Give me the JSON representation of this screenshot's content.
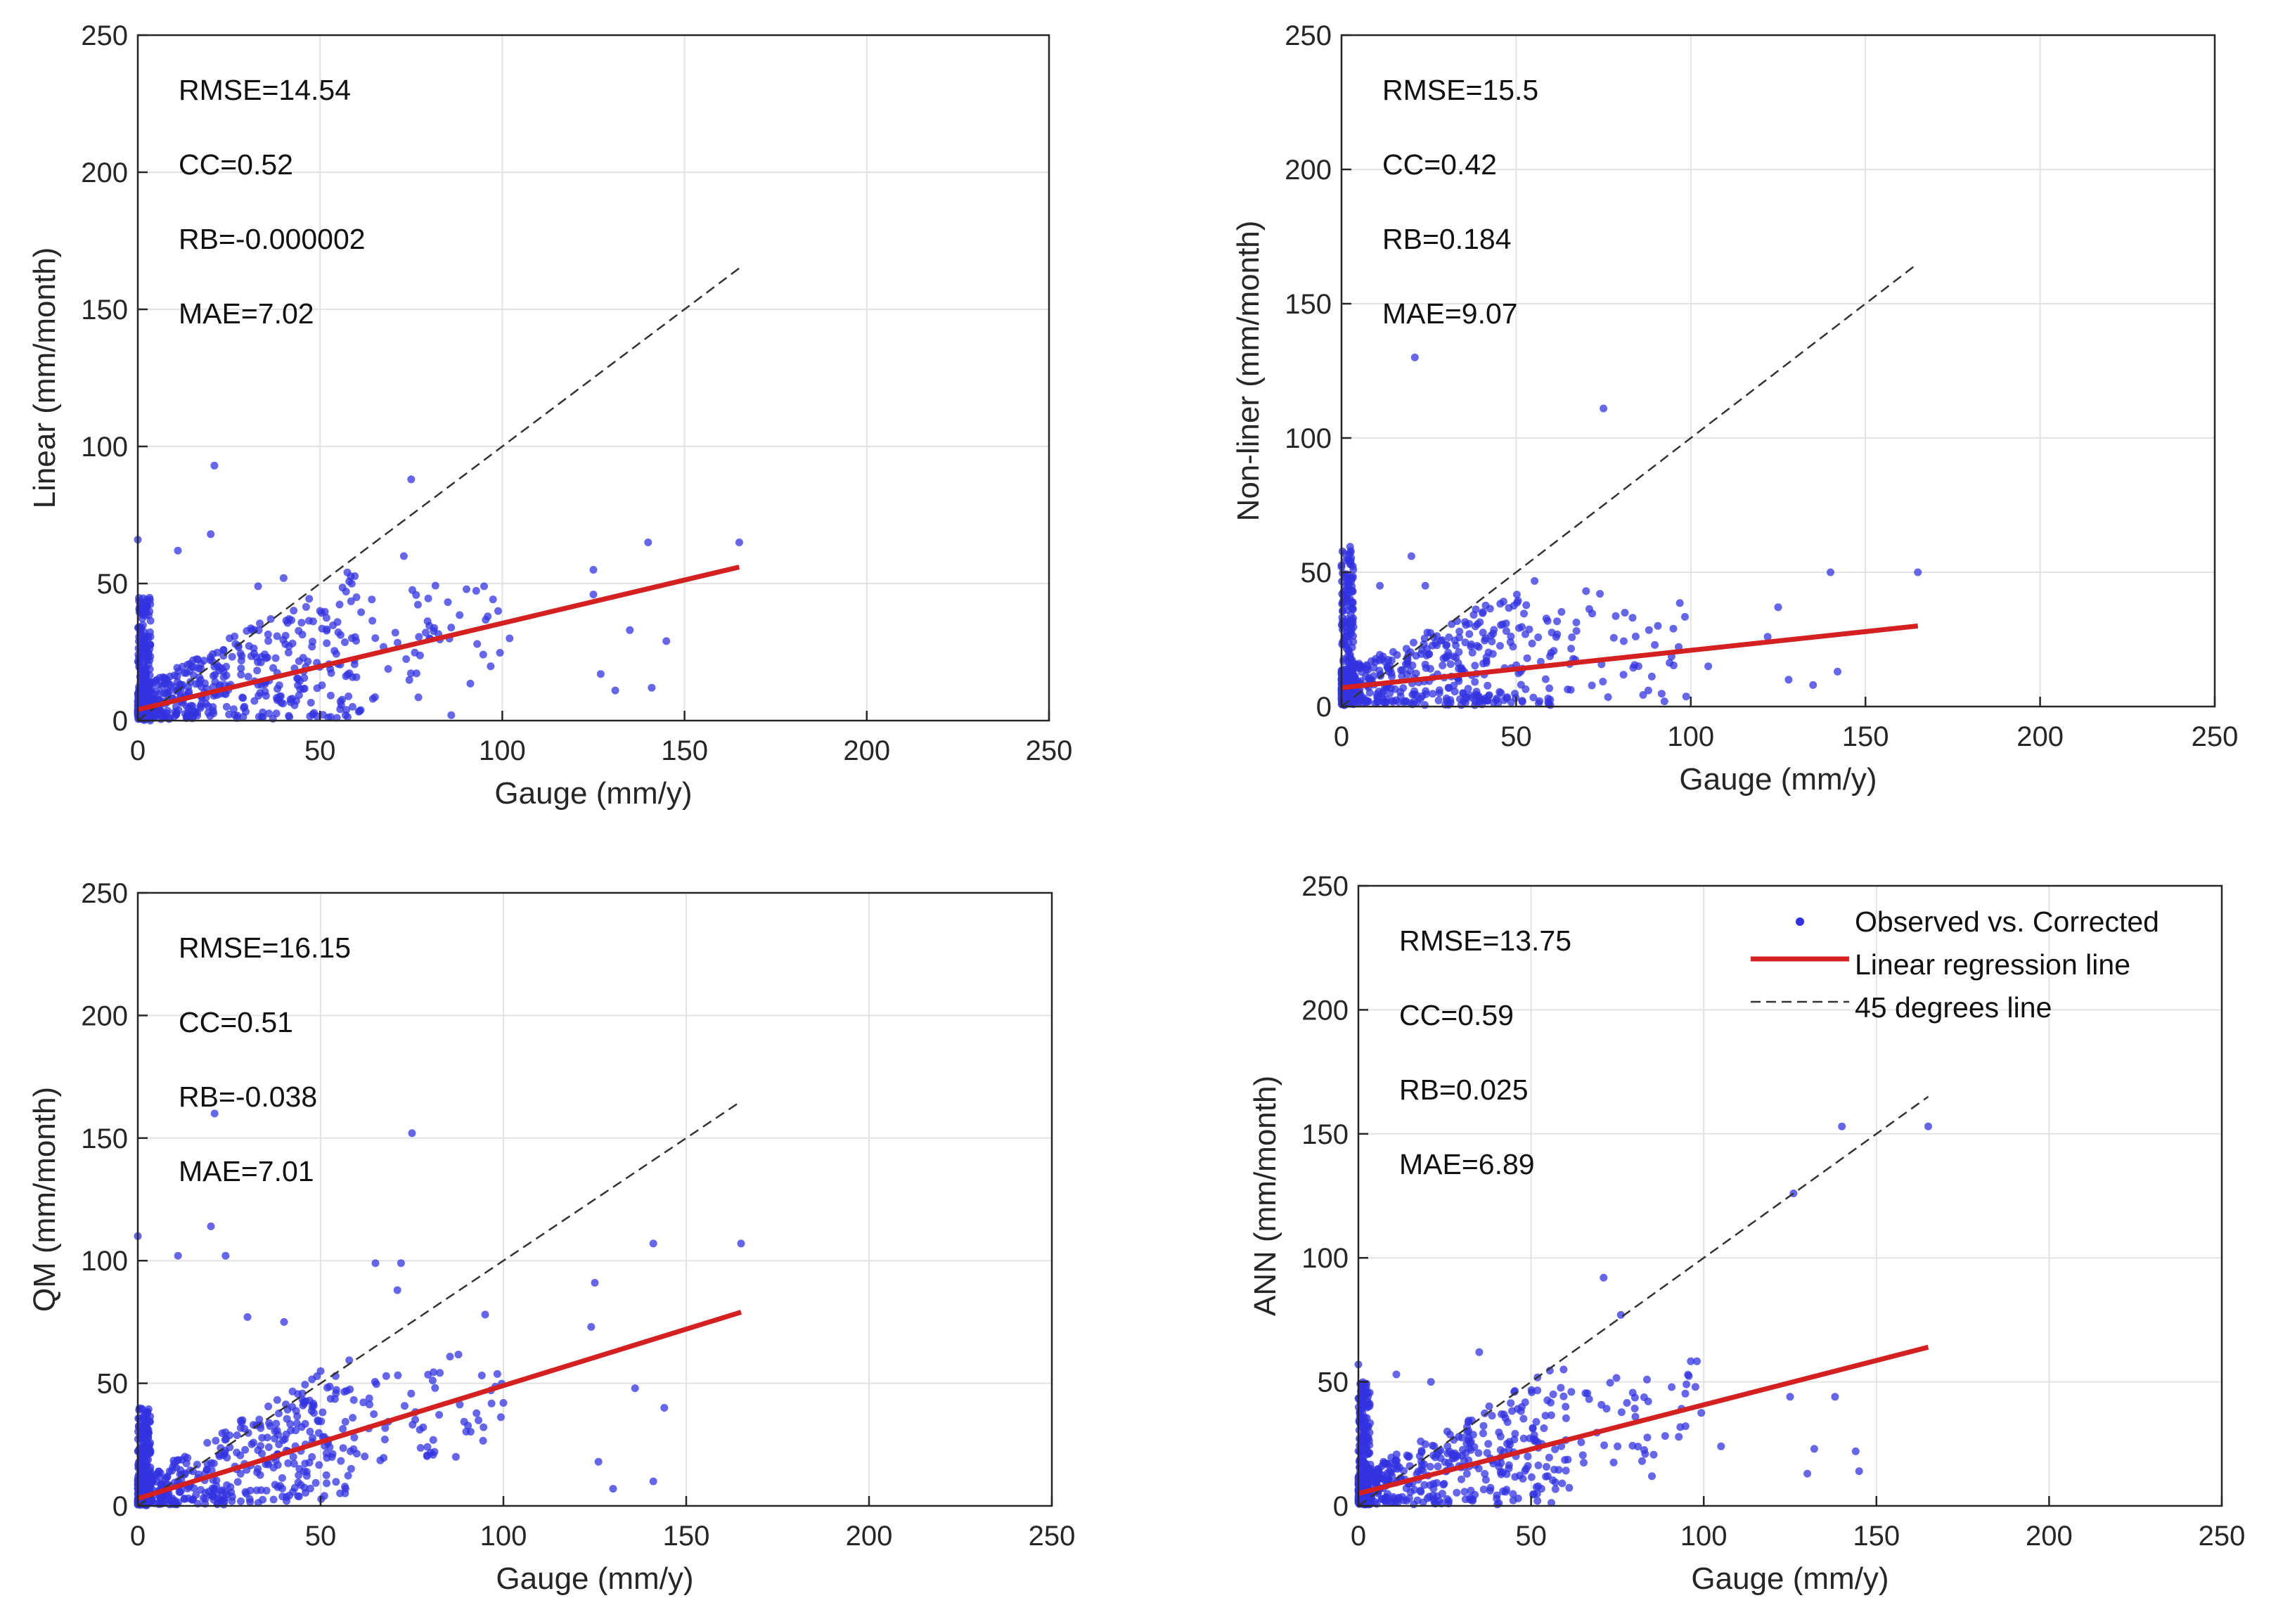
{
  "colors": {
    "scatter": "#3333e0",
    "regression": "#d42020",
    "diagonal": "#333333",
    "grid": "#e3e3e3",
    "axis": "#262626"
  },
  "legend": {
    "placement": "top-right",
    "entries": [
      "Observed vs. Corrected",
      "Linear regression line",
      "45 degrees line"
    ]
  },
  "chart_data": [
    {
      "type": "scatter",
      "xlabel": "Gauge (mm/y)",
      "ylabel": "Linear (mm/month)",
      "xlim": [
        0,
        250
      ],
      "ylim": [
        0,
        250
      ],
      "xticks": [
        0,
        50,
        100,
        150,
        200,
        250
      ],
      "yticks": [
        0,
        50,
        100,
        150,
        200,
        250
      ],
      "grid": true,
      "stats": [
        "RMSE=14.54",
        "CC=0.52",
        "RB=-0.000002",
        "MAE=7.02"
      ],
      "regression_line": {
        "x": [
          0,
          165
        ],
        "y": [
          4,
          56
        ]
      },
      "diagonal_line": {
        "x": [
          0,
          165
        ],
        "y": [
          0,
          165
        ]
      },
      "outliers": [
        [
          0,
          66
        ],
        [
          21,
          93
        ],
        [
          75,
          88
        ],
        [
          20,
          68
        ],
        [
          11,
          62
        ],
        [
          73,
          60
        ],
        [
          95,
          49
        ],
        [
          125,
          55
        ],
        [
          140,
          65
        ],
        [
          165,
          65
        ],
        [
          125,
          46
        ],
        [
          145,
          29
        ],
        [
          135,
          33
        ],
        [
          127,
          17
        ],
        [
          141,
          12
        ],
        [
          131,
          11
        ],
        [
          102,
          30
        ],
        [
          96,
          38
        ],
        [
          86,
          2
        ],
        [
          40,
          52
        ],
        [
          33,
          49
        ],
        [
          60,
          45
        ],
        [
          50,
          40
        ],
        [
          80,
          30
        ]
      ],
      "seed": 11
    },
    {
      "type": "scatter",
      "xlabel": "Gauge (mm/y)",
      "ylabel": "Non-liner (mm/month)",
      "xlim": [
        0,
        250
      ],
      "ylim": [
        0,
        250
      ],
      "xticks": [
        0,
        50,
        100,
        150,
        200,
        250
      ],
      "yticks": [
        0,
        50,
        100,
        150,
        200,
        250
      ],
      "grid": true,
      "stats": [
        "RMSE=15.5",
        "CC=0.42",
        "RB=0.184",
        "MAE=9.07"
      ],
      "regression_line": {
        "x": [
          0,
          165
        ],
        "y": [
          7,
          30
        ]
      },
      "diagonal_line": {
        "x": [
          0,
          165
        ],
        "y": [
          0,
          165
        ]
      },
      "outliers": [
        [
          21,
          130
        ],
        [
          75,
          111
        ],
        [
          0,
          52
        ],
        [
          20,
          56
        ],
        [
          140,
          50
        ],
        [
          165,
          50
        ],
        [
          11,
          45
        ],
        [
          24,
          45
        ],
        [
          70,
          43
        ],
        [
          74,
          42
        ],
        [
          125,
          37
        ],
        [
          95,
          29
        ],
        [
          122,
          26
        ],
        [
          142,
          13
        ],
        [
          128,
          10
        ],
        [
          135,
          8
        ],
        [
          105,
          15
        ],
        [
          60,
          20
        ]
      ],
      "seed": 23
    },
    {
      "type": "scatter",
      "xlabel": "Gauge (mm/y)",
      "ylabel": "QM (mm/month)",
      "xlim": [
        0,
        250
      ],
      "ylim": [
        0,
        250
      ],
      "xticks": [
        0,
        50,
        100,
        150,
        200,
        250
      ],
      "yticks": [
        0,
        50,
        100,
        150,
        200,
        250
      ],
      "grid": true,
      "stats": [
        "RMSE=16.15",
        "CC=0.51",
        "RB=-0.038",
        "MAE=7.01"
      ],
      "regression_line": {
        "x": [
          0,
          165
        ],
        "y": [
          3,
          79
        ]
      },
      "diagonal_line": {
        "x": [
          0,
          165
        ],
        "y": [
          0,
          165
        ]
      },
      "outliers": [
        [
          21,
          160
        ],
        [
          75,
          152
        ],
        [
          0,
          110
        ],
        [
          20,
          114
        ],
        [
          11,
          102
        ],
        [
          24,
          102
        ],
        [
          65,
          99
        ],
        [
          72,
          99
        ],
        [
          141,
          107
        ],
        [
          165,
          107
        ],
        [
          125,
          91
        ],
        [
          71,
          88
        ],
        [
          95,
          78
        ],
        [
          124,
          73
        ],
        [
          136,
          48
        ],
        [
          144,
          40
        ],
        [
          100,
          42
        ],
        [
          87,
          20
        ],
        [
          126,
          18
        ],
        [
          141,
          10
        ],
        [
          130,
          7
        ],
        [
          30,
          77
        ],
        [
          40,
          75
        ],
        [
          50,
          55
        ]
      ],
      "seed": 37
    },
    {
      "type": "scatter",
      "xlabel": "Gauge (mm/y)",
      "ylabel": "ANN (mm/month)",
      "xlim": [
        0,
        250
      ],
      "ylim": [
        0,
        250
      ],
      "xticks": [
        0,
        50,
        100,
        150,
        200,
        250
      ],
      "yticks": [
        0,
        50,
        100,
        150,
        200,
        250
      ],
      "grid": true,
      "stats": [
        "RMSE=13.75",
        "CC=0.59",
        "RB=0.025",
        "MAE=6.89"
      ],
      "regression_line": {
        "x": [
          0,
          165
        ],
        "y": [
          5,
          64
        ]
      },
      "diagonal_line": {
        "x": [
          0,
          165
        ],
        "y": [
          0,
          165
        ]
      },
      "outliers": [
        [
          140,
          153
        ],
        [
          165,
          153
        ],
        [
          126,
          126
        ],
        [
          71,
          92
        ],
        [
          76,
          77
        ],
        [
          0,
          57
        ],
        [
          11,
          53
        ],
        [
          35,
          62
        ],
        [
          21,
          50
        ],
        [
          95,
          49
        ],
        [
          105,
          24
        ],
        [
          125,
          44
        ],
        [
          144,
          22
        ],
        [
          132,
          23
        ],
        [
          138,
          44
        ],
        [
          145,
          14
        ],
        [
          130,
          13
        ],
        [
          85,
          12
        ],
        [
          60,
          40
        ]
      ],
      "seed": 53
    }
  ]
}
